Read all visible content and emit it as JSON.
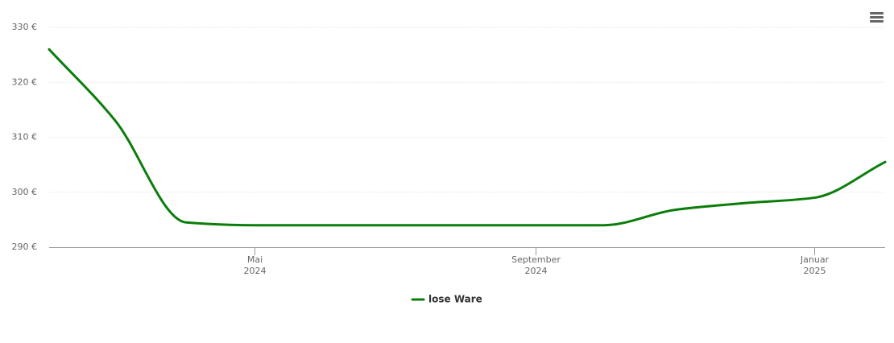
{
  "chart_data": {
    "type": "line",
    "x": [
      "2024-02",
      "2024-03",
      "2024-04",
      "2024-05",
      "2024-06",
      "2024-07",
      "2024-08",
      "2024-09",
      "2024-10",
      "2024-11",
      "2024-12",
      "2025-01",
      "2025-02"
    ],
    "series": [
      {
        "name": "lose Ware",
        "color": "#0b7d0b",
        "values": [
          326,
          313,
          294.5,
          294,
          294,
          294,
          294,
          294,
          294,
          296.8,
          298,
          299,
          305.5
        ]
      }
    ],
    "xlim": [
      "2024-02",
      "2025-02"
    ],
    "xticks": [
      {
        "value": "2024-05",
        "label": [
          "Mai",
          "2024"
        ]
      },
      {
        "value": "2024-09",
        "label": [
          "September",
          "2024"
        ]
      },
      {
        "value": "2025-01",
        "label": [
          "Januar",
          "2025"
        ]
      }
    ],
    "ylim": [
      290,
      330
    ],
    "yticks": [
      {
        "value": 290,
        "label": "290 €"
      },
      {
        "value": 300,
        "label": "300 €"
      },
      {
        "value": 310,
        "label": "310 €"
      },
      {
        "value": 320,
        "label": "320 €"
      },
      {
        "value": 330,
        "label": "330 €"
      }
    ],
    "grid": true,
    "legend": "bottom"
  }
}
